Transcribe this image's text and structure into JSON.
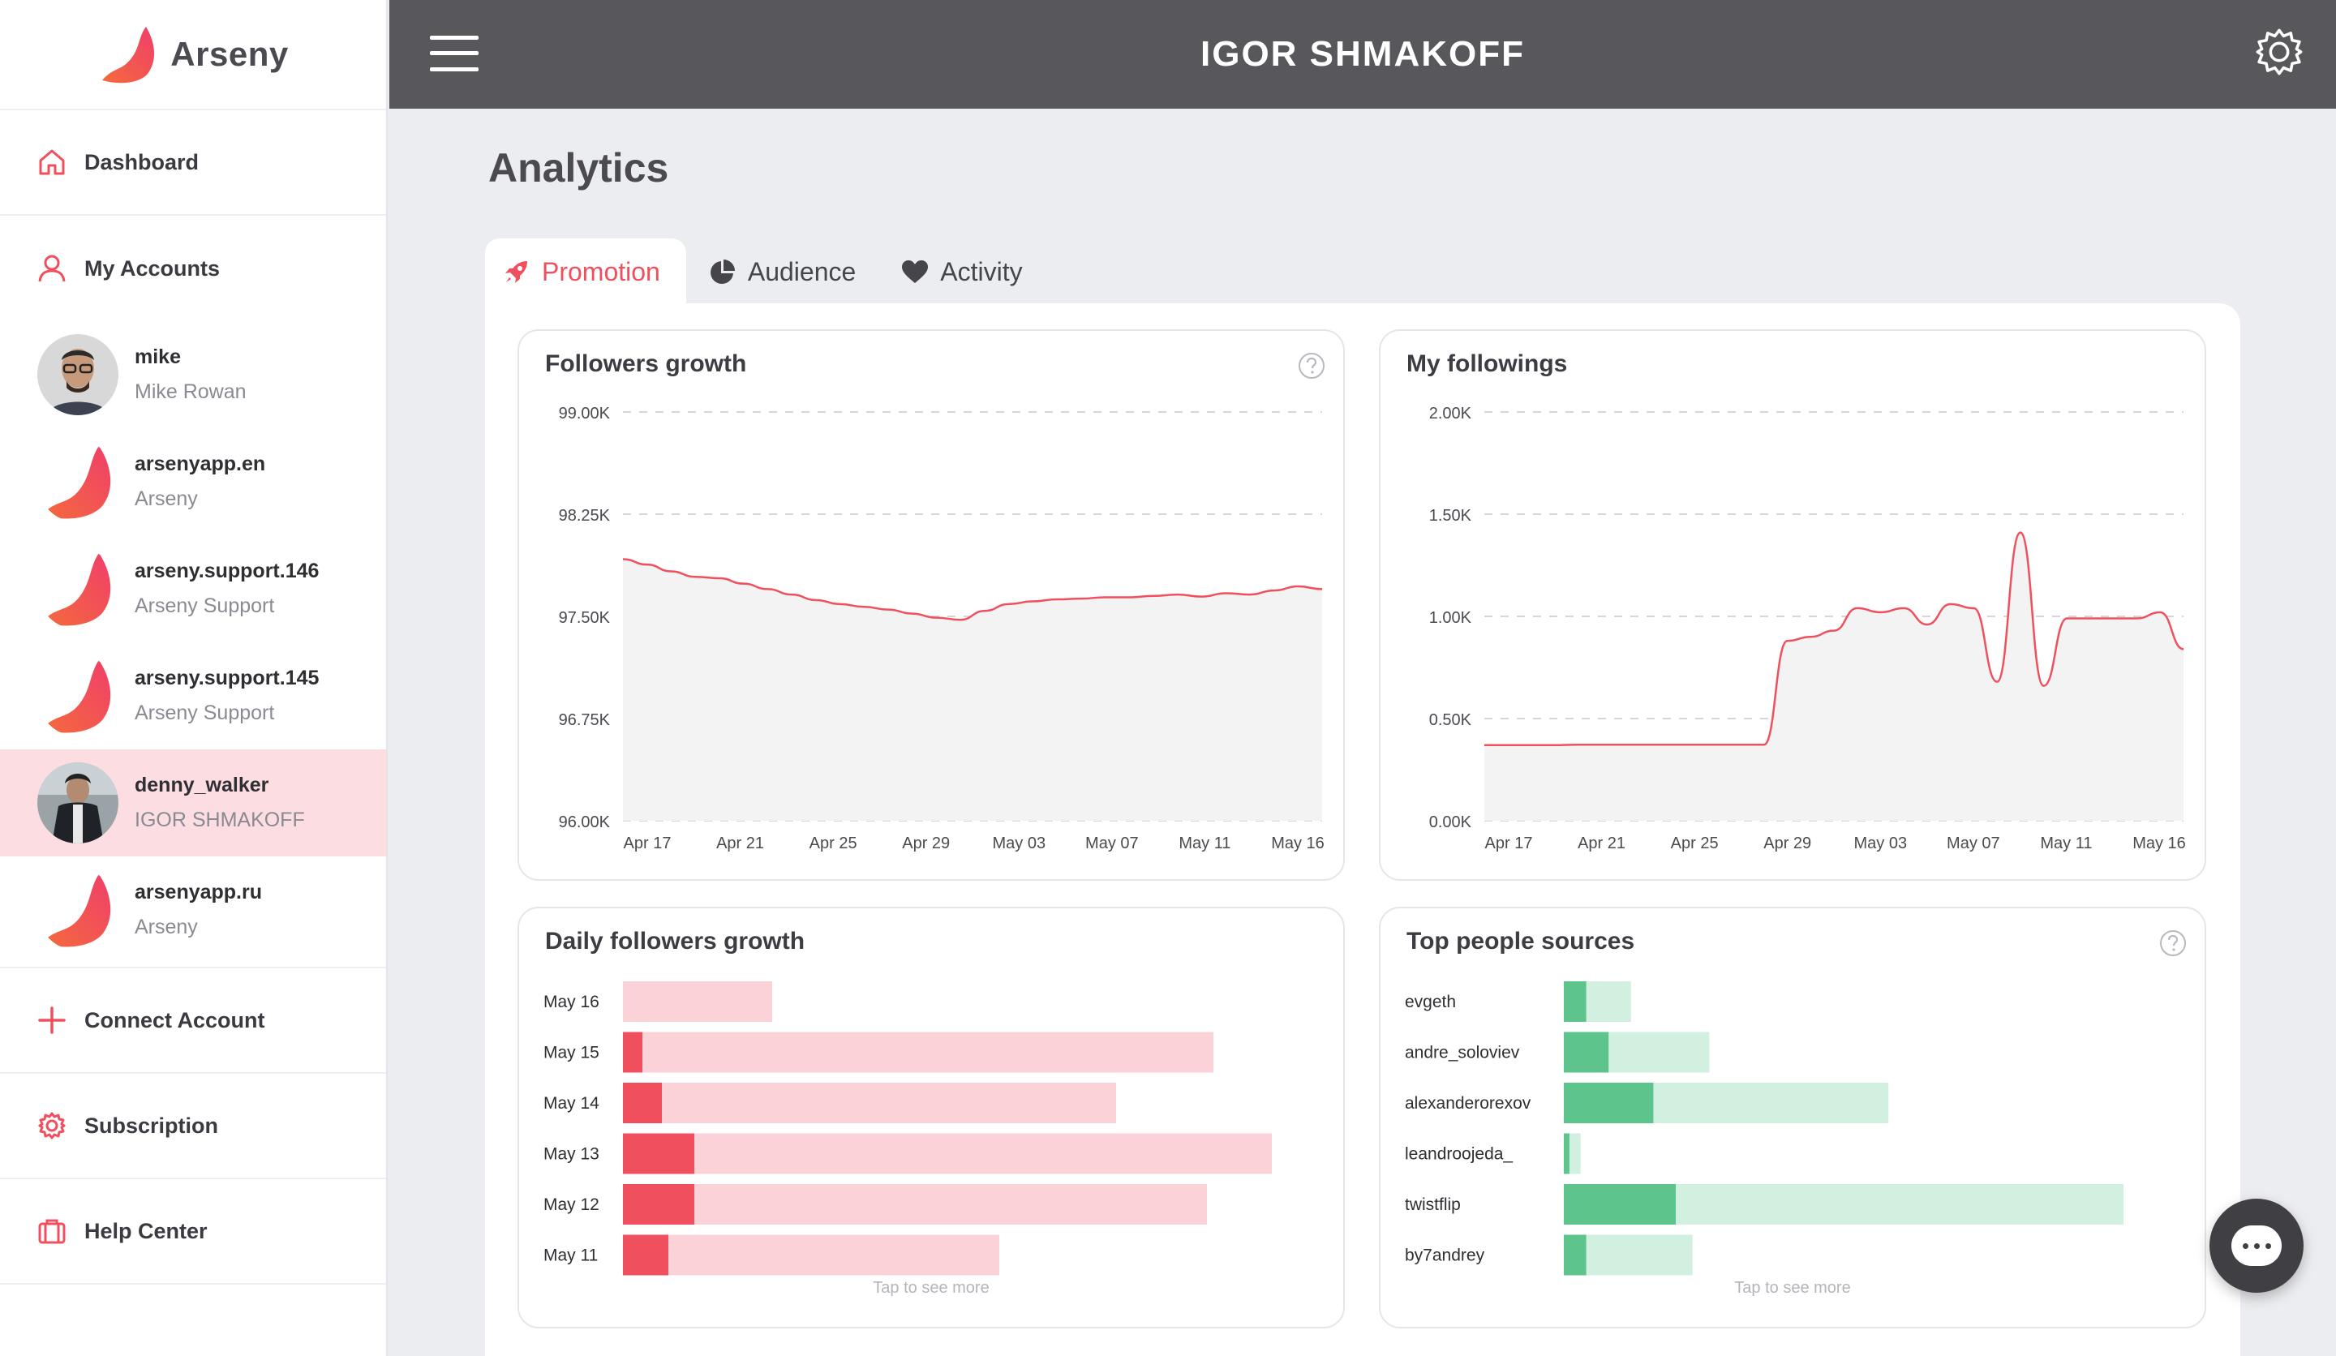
{
  "brand": {
    "name": "Arseny",
    "accent": "#f0505d"
  },
  "sidebar": {
    "dashboard": "Dashboard",
    "my_accounts": "My Accounts",
    "accounts": [
      {
        "name": "mike",
        "sub": "Mike Rowan",
        "avatar": "person-photo"
      },
      {
        "name": "arsenyapp.en",
        "sub": "Arseny",
        "avatar": "arseny-logo"
      },
      {
        "name": "arseny.support.146",
        "sub": "Arseny Support",
        "avatar": "arseny-logo"
      },
      {
        "name": "arseny.support.145",
        "sub": "Arseny Support",
        "avatar": "arseny-logo"
      },
      {
        "name": "denny_walker",
        "sub": "IGOR SHMAKOFF",
        "avatar": "person-photo",
        "active": true
      },
      {
        "name": "arsenyapp.ru",
        "sub": "Arseny",
        "avatar": "arseny-logo"
      }
    ],
    "connect_account": "Connect Account",
    "subscription": "Subscription",
    "help_center": "Help Center"
  },
  "topbar": {
    "title": "IGOR SHMAKOFF"
  },
  "page": {
    "title": "Analytics"
  },
  "tabs": [
    {
      "label": "Promotion",
      "icon": "rocket-icon",
      "active": true
    },
    {
      "label": "Audience",
      "icon": "pie-chart-icon"
    },
    {
      "label": "Activity",
      "icon": "heart-icon"
    }
  ],
  "chart_data": [
    {
      "type": "area",
      "title": "Followers growth",
      "x_ticks": [
        "Apr 17",
        "Apr 21",
        "Apr 25",
        "Apr 29",
        "May 03",
        "May 07",
        "May 11",
        "May 16"
      ],
      "y_ticks": [
        "96.00K",
        "96.75K",
        "97.50K",
        "98.25K",
        "99.00K"
      ],
      "ylim": [
        96000,
        99000
      ],
      "x": [
        "Apr 17",
        "Apr 18",
        "Apr 19",
        "Apr 20",
        "Apr 21",
        "Apr 22",
        "Apr 23",
        "Apr 24",
        "Apr 25",
        "Apr 26",
        "Apr 27",
        "Apr 28",
        "Apr 29",
        "Apr 30",
        "May 01",
        "May 02",
        "May 03",
        "May 04",
        "May 05",
        "May 06",
        "May 07",
        "May 08",
        "May 09",
        "May 10",
        "May 11",
        "May 12",
        "May 13",
        "May 14",
        "May 15",
        "May 16"
      ],
      "values": [
        97920,
        97880,
        97830,
        97790,
        97780,
        97740,
        97700,
        97660,
        97620,
        97590,
        97570,
        97550,
        97520,
        97490,
        97475,
        97540,
        97590,
        97610,
        97625,
        97630,
        97640,
        97640,
        97650,
        97660,
        97645,
        97670,
        97660,
        97690,
        97720,
        97700
      ],
      "color": "#f0505d"
    },
    {
      "type": "area",
      "title": "My followings",
      "x_ticks": [
        "Apr 17",
        "Apr 21",
        "Apr 25",
        "Apr 29",
        "May 03",
        "May 07",
        "May 11",
        "May 16"
      ],
      "y_ticks": [
        "0.00K",
        "0.50K",
        "1.00K",
        "1.50K",
        "2.00K"
      ],
      "ylim": [
        0,
        2000
      ],
      "x": [
        "Apr 17",
        "Apr 18",
        "Apr 19",
        "Apr 20",
        "Apr 21",
        "Apr 22",
        "Apr 23",
        "Apr 24",
        "Apr 25",
        "Apr 26",
        "Apr 27",
        "Apr 28",
        "Apr 29",
        "Apr 29b",
        "Apr 30",
        "May 01",
        "May 02",
        "May 03",
        "May 04",
        "May 05",
        "May 06",
        "May 07",
        "May 08",
        "May 09",
        "May 10",
        "May 11",
        "May 12",
        "May 13",
        "May 14",
        "May 15",
        "May 16"
      ],
      "values": [
        370,
        370,
        370,
        370,
        372,
        372,
        372,
        372,
        372,
        372,
        372,
        372,
        372,
        880,
        900,
        930,
        1040,
        1020,
        1040,
        960,
        1060,
        1040,
        680,
        1410,
        660,
        990,
        990,
        990,
        990,
        1020,
        840
      ],
      "color": "#f0505d"
    },
    {
      "type": "bar",
      "title": "Daily followers growth",
      "categories": [
        "May 16",
        "May 15",
        "May 14",
        "May 13",
        "May 12",
        "May 11"
      ],
      "series": [
        {
          "values": [
            0,
            3,
            6,
            11,
            11,
            7
          ],
          "color": "#f0505d"
        },
        {
          "values": [
            23,
            91,
            76,
            100,
            90,
            58
          ],
          "color": "#fad2d7"
        }
      ],
      "footer": "Tap to see more"
    },
    {
      "type": "bar",
      "title": "Top people sources",
      "categories": [
        "evgeth",
        "andre_soloviev",
        "alexanderorexov",
        "leandroojeda_",
        "twistflip",
        "by7andrey"
      ],
      "series": [
        {
          "values": [
            4,
            8,
            16,
            1,
            20,
            4
          ],
          "color": "#5dc48c"
        },
        {
          "values": [
            12,
            26,
            58,
            3,
            100,
            23
          ],
          "color": "#d2f0df"
        }
      ],
      "footer": "Tap to see more"
    }
  ]
}
